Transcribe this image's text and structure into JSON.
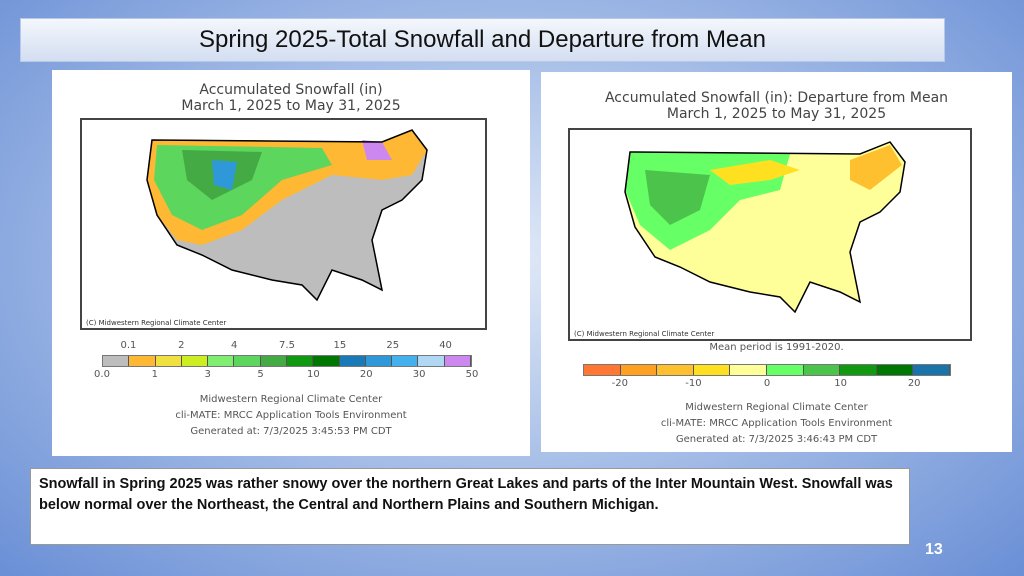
{
  "title": "Spring 2025-Total Snowfall and Departure from Mean",
  "left_map": {
    "title_line1": "Accumulated Snowfall (in)",
    "title_line2": "March 1, 2025 to May 31, 2025",
    "credit": "(C) Midwestern Regional Climate Center",
    "legend_top_labels": [
      "0.1",
      "2",
      "4",
      "7.5",
      "15",
      "25",
      "40"
    ],
    "legend_bottom_labels": [
      "0.0",
      "1",
      "3",
      "5",
      "10",
      "20",
      "30",
      "50"
    ],
    "legend_colors": [
      "#bdbdbd",
      "#ffb833",
      "#f0e040",
      "#ccee22",
      "#80ee70",
      "#5cd65c",
      "#44aa44",
      "#119911",
      "#007700",
      "#1a7ab8",
      "#2e98d8",
      "#44b0ee",
      "#b0d8f5",
      "#cc88ee"
    ],
    "footer": [
      "Midwestern Regional Climate Center",
      "cli-MATE: MRCC Application Tools Environment",
      "Generated at: 7/3/2025 3:45:53 PM CDT"
    ]
  },
  "right_map": {
    "title_line1": "Accumulated Snowfall (in): Departure from Mean",
    "title_line2": "March 1, 2025 to May 31, 2025",
    "credit": "(C) Midwestern Regional Climate Center",
    "mean_period": "Mean period is 1991-2020.",
    "legend_labels": [
      "-20",
      "-10",
      "0",
      "10",
      "20"
    ],
    "legend_colors": [
      "#ff7733",
      "#ffa020",
      "#ffc030",
      "#ffe020",
      "#ffff99",
      "#66ff66",
      "#4cc44c",
      "#119911",
      "#007700",
      "#1a74aa"
    ],
    "footer": [
      "Midwestern Regional Climate Center",
      "cli-MATE: MRCC Application Tools Environment",
      "Generated at: 7/3/2025 3:46:43 PM CDT"
    ]
  },
  "note": "Snowfall in Spring 2025 was rather snowy over the northern Great Lakes and  parts of the Inter Mountain West.  Snowfall was below normal over the Northeast, the Central and Northern Plains and Southern Michigan.",
  "page_number": "13"
}
